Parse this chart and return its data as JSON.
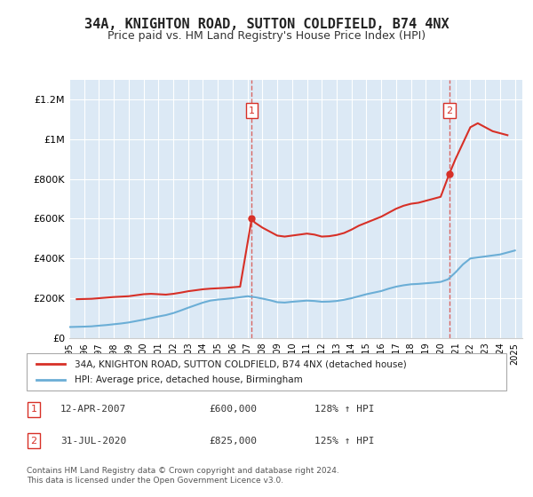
{
  "title1": "34A, KNIGHTON ROAD, SUTTON COLDFIELD, B74 4NX",
  "title2": "Price paid vs. HM Land Registry's House Price Index (HPI)",
  "legend_line1": "34A, KNIGHTON ROAD, SUTTON COLDFIELD, B74 4NX (detached house)",
  "legend_line2": "HPI: Average price, detached house, Birmingham",
  "annotation1_label": "1",
  "annotation1_date": "12-APR-2007",
  "annotation1_price": "£600,000",
  "annotation1_hpi": "128% ↑ HPI",
  "annotation2_label": "2",
  "annotation2_date": "31-JUL-2020",
  "annotation2_price": "£825,000",
  "annotation2_hpi": "125% ↑ HPI",
  "footnote": "Contains HM Land Registry data © Crown copyright and database right 2024.\nThis data is licensed under the Open Government Licence v3.0.",
  "hpi_color": "#6baed6",
  "price_color": "#d73027",
  "annotation_color": "#d73027",
  "bg_color": "#dce9f5",
  "plot_bg": "#dce9f5",
  "grid_color": "#ffffff",
  "ylim": [
    0,
    1300000
  ],
  "yticks": [
    0,
    200000,
    400000,
    600000,
    800000,
    1000000,
    1200000
  ],
  "xlim_start": 1995.0,
  "xlim_end": 2025.5,
  "marker1_x": 2007.28,
  "marker1_y": 600000,
  "marker2_x": 2020.58,
  "marker2_y": 825000,
  "hpi_years": [
    1995,
    1995.5,
    1996,
    1996.5,
    1997,
    1997.5,
    1998,
    1998.5,
    1999,
    1999.5,
    2000,
    2000.5,
    2001,
    2001.5,
    2002,
    2002.5,
    2003,
    2003.5,
    2004,
    2004.5,
    2005,
    2005.5,
    2006,
    2006.5,
    2007,
    2007.5,
    2008,
    2008.5,
    2009,
    2009.5,
    2010,
    2010.5,
    2011,
    2011.5,
    2012,
    2012.5,
    2013,
    2013.5,
    2014,
    2014.5,
    2015,
    2015.5,
    2016,
    2016.5,
    2017,
    2017.5,
    2018,
    2018.5,
    2019,
    2019.5,
    2020,
    2020.5,
    2021,
    2021.5,
    2022,
    2022.5,
    2023,
    2023.5,
    2024,
    2024.5,
    2025
  ],
  "hpi_values": [
    55000,
    56000,
    57000,
    58500,
    62000,
    65000,
    69000,
    73000,
    78000,
    85000,
    92000,
    100000,
    108000,
    115000,
    125000,
    138000,
    152000,
    165000,
    178000,
    188000,
    193000,
    196000,
    200000,
    205000,
    210000,
    205000,
    198000,
    190000,
    180000,
    178000,
    182000,
    185000,
    188000,
    186000,
    182000,
    183000,
    186000,
    192000,
    200000,
    210000,
    220000,
    228000,
    236000,
    248000,
    258000,
    265000,
    270000,
    272000,
    275000,
    278000,
    282000,
    295000,
    330000,
    370000,
    400000,
    405000,
    410000,
    415000,
    420000,
    430000,
    440000
  ],
  "price_years": [
    1995.5,
    1996,
    1996.5,
    1997,
    1997.5,
    1998,
    1998.5,
    1999,
    1999.5,
    2000,
    2000.5,
    2001,
    2001.5,
    2002,
    2002.5,
    2003,
    2003.5,
    2004,
    2004.5,
    2005,
    2005.5,
    2006,
    2006.5,
    2007.28,
    2007.5,
    2008,
    2008.5,
    2009,
    2009.5,
    2010,
    2010.5,
    2011,
    2011.5,
    2012,
    2012.5,
    2013,
    2013.5,
    2014,
    2014.5,
    2015,
    2015.5,
    2016,
    2016.5,
    2017,
    2017.5,
    2018,
    2018.5,
    2019,
    2019.5,
    2020,
    2020.58,
    2021,
    2021.5,
    2022,
    2022.5,
    2023,
    2023.5,
    2024,
    2024.5
  ],
  "price_values": [
    195000,
    196000,
    197000,
    200000,
    203000,
    206000,
    208000,
    210000,
    215000,
    220000,
    222000,
    220000,
    218000,
    222000,
    228000,
    235000,
    240000,
    245000,
    248000,
    250000,
    252000,
    255000,
    258000,
    600000,
    580000,
    555000,
    535000,
    515000,
    510000,
    515000,
    520000,
    525000,
    520000,
    510000,
    512000,
    518000,
    528000,
    545000,
    565000,
    580000,
    595000,
    610000,
    630000,
    650000,
    665000,
    675000,
    680000,
    690000,
    700000,
    710000,
    825000,
    900000,
    980000,
    1060000,
    1080000,
    1060000,
    1040000,
    1030000,
    1020000
  ]
}
